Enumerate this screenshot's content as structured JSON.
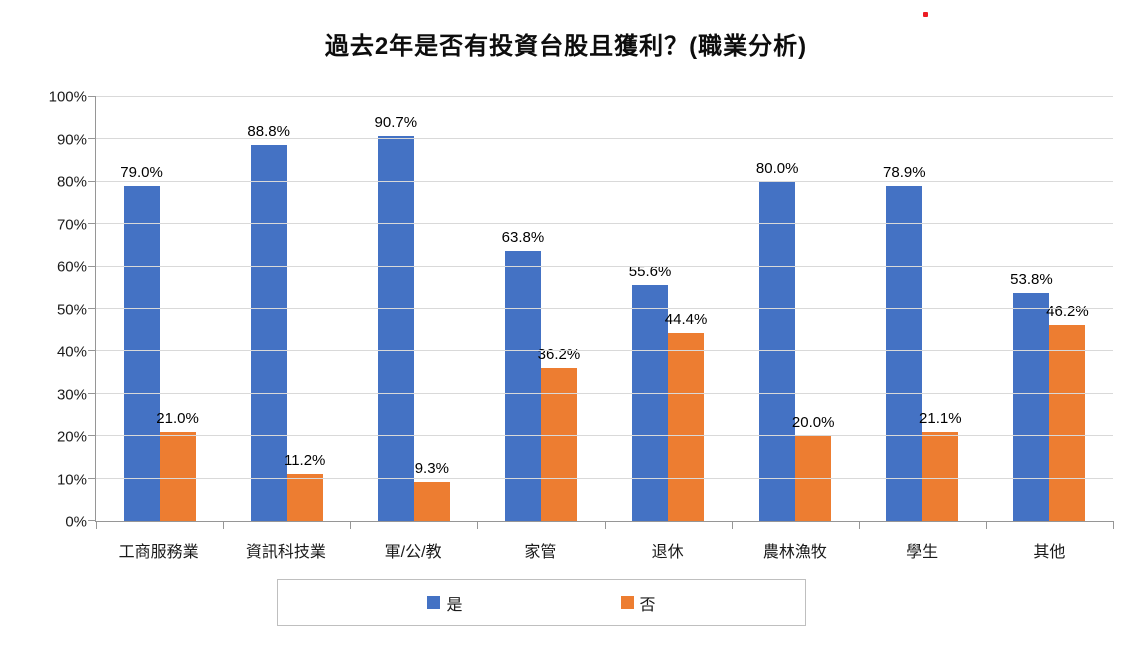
{
  "chart_data": {
    "type": "bar",
    "title": "過去2年是否有投資台股且獲利？(職業分析)",
    "categories": [
      "工商服務業",
      "資訊科技業",
      "軍/公/教",
      "家管",
      "退休",
      "農林漁牧",
      "學生",
      "其他"
    ],
    "series": [
      {
        "name": "是",
        "color": "#4472C4",
        "values": [
          79.0,
          88.8,
          90.7,
          63.8,
          55.6,
          80.0,
          78.9,
          53.8
        ],
        "labels": [
          "79.0%",
          "88.8%",
          "90.7%",
          "63.8%",
          "55.6%",
          "80.0%",
          "78.9%",
          "53.8%"
        ]
      },
      {
        "name": "否",
        "color": "#ED7D31",
        "values": [
          21.0,
          11.2,
          9.3,
          36.2,
          44.4,
          20.0,
          21.1,
          46.2
        ],
        "labels": [
          "21.0%",
          "11.2%",
          "9.3%",
          "36.2%",
          "44.4%",
          "20.0%",
          "21.1%",
          "46.2%"
        ]
      }
    ],
    "y_axis": {
      "min": 0,
      "max": 100,
      "step": 10,
      "tick_labels": [
        "0%",
        "10%",
        "20%",
        "30%",
        "40%",
        "50%",
        "60%",
        "70%",
        "80%",
        "90%",
        "100%"
      ]
    },
    "xlabel": "",
    "ylabel": "",
    "ylim": [
      0,
      100
    ],
    "grid": true,
    "legend_position": "bottom"
  },
  "colors": {
    "gridline": "#D9D9D9",
    "axis_line": "#969696",
    "data_label": "#000000",
    "red_dot_artifact": "#EC1C24"
  }
}
